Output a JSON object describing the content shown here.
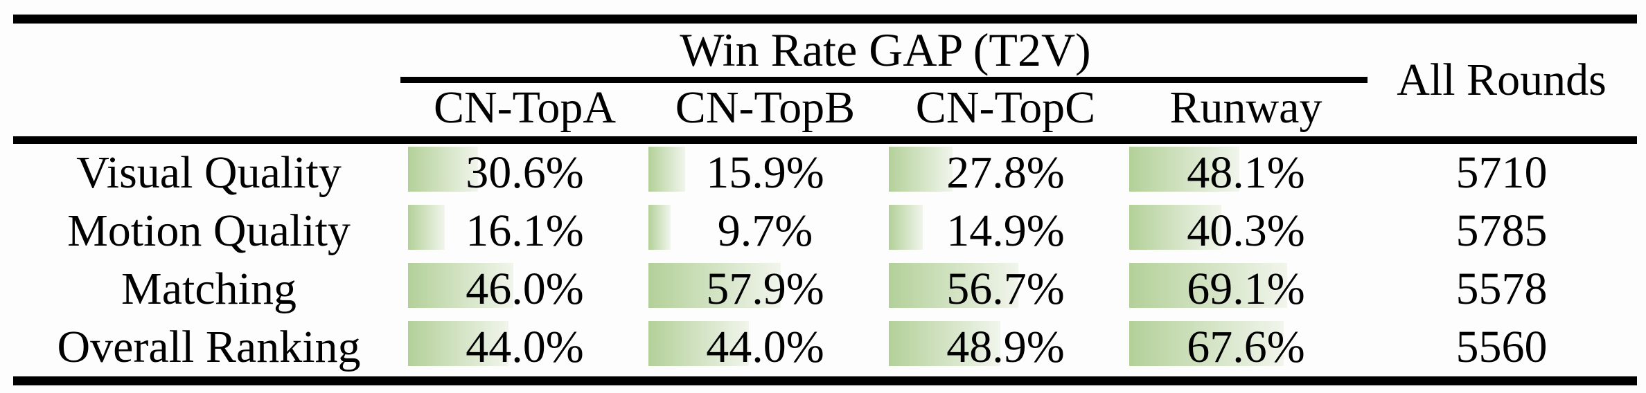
{
  "table": {
    "group_header": "Win Rate GAP (T2V)",
    "all_rounds_header": "All Rounds",
    "columns": [
      "CN-TopA",
      "CN-TopB",
      "CN-TopC",
      "Runway"
    ],
    "rows": [
      {
        "label": "Visual Quality",
        "values": [
          30.6,
          15.9,
          27.8,
          48.1
        ],
        "cells": [
          "30.6%",
          "15.9%",
          "27.8%",
          "48.1%"
        ],
        "all_rounds": "5710"
      },
      {
        "label": "Motion Quality",
        "values": [
          16.1,
          9.7,
          14.9,
          40.3
        ],
        "cells": [
          "16.1%",
          "9.7%",
          "14.9%",
          "40.3%"
        ],
        "all_rounds": "5785"
      },
      {
        "label": "Matching",
        "values": [
          46.0,
          57.9,
          56.7,
          69.1
        ],
        "cells": [
          "46.0%",
          "57.9%",
          "56.7%",
          "69.1%"
        ],
        "all_rounds": "5578"
      },
      {
        "label": "Overall Ranking",
        "values": [
          44.0,
          44.0,
          48.9,
          67.6
        ],
        "cells": [
          "44.0%",
          "44.0%",
          "48.9%",
          "67.6%"
        ],
        "all_rounds": "5560"
      }
    ]
  },
  "colors": {
    "bar_gradient_start": "#b3d099",
    "bar_gradient_end": "#f1f5ec",
    "rule": "#000000",
    "text": "#000000",
    "background": "#fdfdfd"
  },
  "chart_data": {
    "type": "table",
    "title": "Win Rate GAP (T2V)",
    "columns": [
      "CN-TopA",
      "CN-TopB",
      "CN-TopC",
      "Runway",
      "All Rounds"
    ],
    "row_labels": [
      "Visual Quality",
      "Motion Quality",
      "Matching",
      "Overall Ranking"
    ],
    "win_rate_gap_percent": {
      "Visual Quality": [
        30.6,
        15.9,
        27.8,
        48.1
      ],
      "Motion Quality": [
        16.1,
        9.7,
        14.9,
        40.3
      ],
      "Matching": [
        46.0,
        57.9,
        56.7,
        69.1
      ],
      "Overall Ranking": [
        44.0,
        44.0,
        48.9,
        67.6
      ]
    },
    "all_rounds": [
      5710,
      5785,
      5578,
      5560
    ],
    "bars": "horizontal green gradient bars, width proportional to percent, anchored at cell left edge",
    "value_range_percent": [
      0,
      100
    ]
  }
}
